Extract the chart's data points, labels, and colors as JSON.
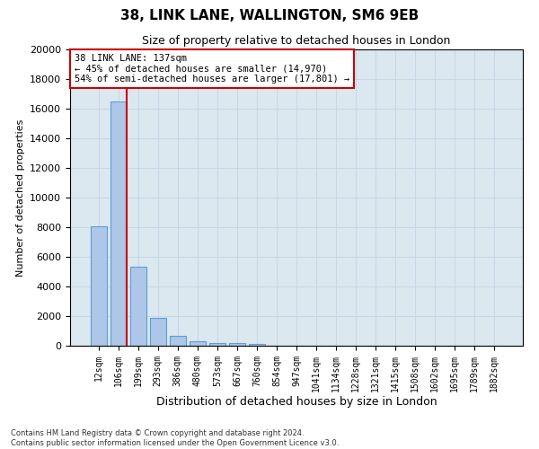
{
  "title_line1": "38, LINK LANE, WALLINGTON, SM6 9EB",
  "title_line2": "Size of property relative to detached houses in London",
  "xlabel": "Distribution of detached houses by size in London",
  "ylabel": "Number of detached properties",
  "bar_labels": [
    "12sqm",
    "106sqm",
    "199sqm",
    "293sqm",
    "386sqm",
    "480sqm",
    "573sqm",
    "667sqm",
    "760sqm",
    "854sqm",
    "947sqm",
    "1041sqm",
    "1134sqm",
    "1228sqm",
    "1321sqm",
    "1415sqm",
    "1508sqm",
    "1602sqm",
    "1695sqm",
    "1789sqm",
    "1882sqm"
  ],
  "bar_values": [
    8050,
    16500,
    5350,
    1850,
    650,
    320,
    210,
    170,
    150,
    0,
    0,
    0,
    0,
    0,
    0,
    0,
    0,
    0,
    0,
    0,
    0
  ],
  "bar_color": "#aec6e8",
  "bar_edge_color": "#5a9fd4",
  "red_line_x": 1,
  "annotation_text": "38 LINK LANE: 137sqm\n← 45% of detached houses are smaller (14,970)\n54% of semi-detached houses are larger (17,801) →",
  "annotation_box_color": "#ffffff",
  "annotation_box_edge": "#cc0000",
  "red_line_color": "#cc0000",
  "grid_color": "#c8d8e8",
  "bg_color": "#dce8f0",
  "ylim": [
    0,
    20000
  ],
  "yticks": [
    0,
    2000,
    4000,
    6000,
    8000,
    10000,
    12000,
    14000,
    16000,
    18000,
    20000
  ],
  "footnote": "Contains HM Land Registry data © Crown copyright and database right 2024.\nContains public sector information licensed under the Open Government Licence v3.0."
}
